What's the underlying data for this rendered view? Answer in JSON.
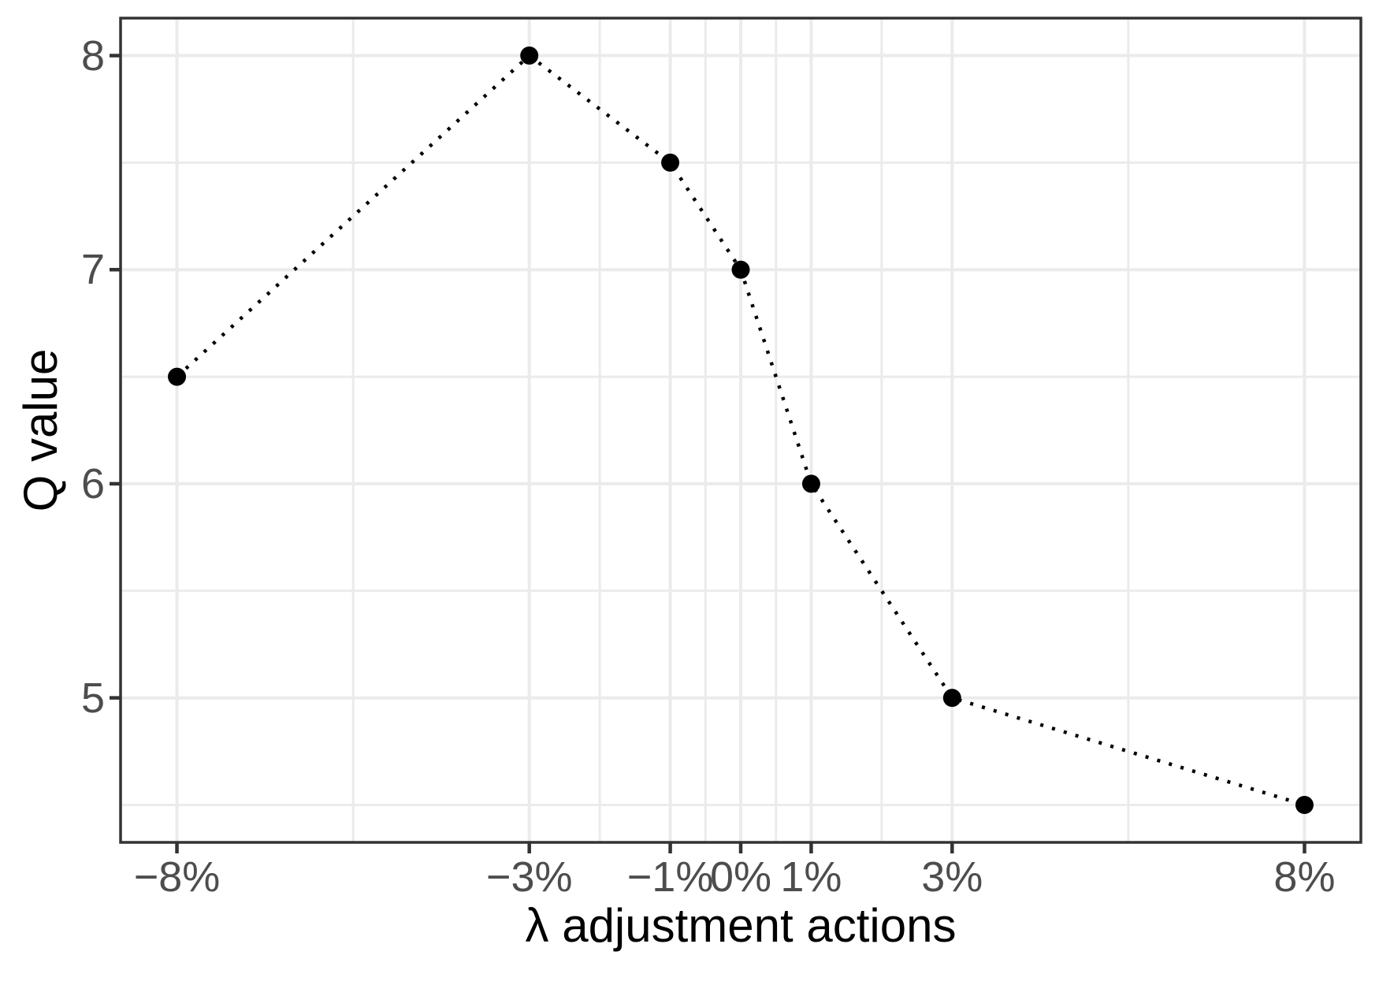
{
  "chart_data": {
    "type": "line",
    "subtype": "dotted-line-with-points",
    "title": "",
    "xlabel": "λ adjustment actions",
    "ylabel": "Q value",
    "x": [
      -8,
      -3,
      -1,
      0,
      1,
      3,
      8
    ],
    "x_tick_labels": [
      "−8%",
      "−3%",
      "−1%",
      "0%",
      "1%",
      "3%",
      "8%"
    ],
    "series": [
      {
        "name": "Q value",
        "x": [
          -8,
          -3,
          -1,
          0,
          1,
          3,
          8
        ],
        "values": [
          6.5,
          8.0,
          7.5,
          7.0,
          6.0,
          5.0,
          4.5
        ]
      }
    ],
    "y_ticks": [
      8,
      7,
      6,
      5
    ],
    "y_tick_labels": [
      "8",
      "7",
      "6",
      "5"
    ],
    "x_minor_gridlines": [
      -5.5,
      -2,
      -0.5,
      0.5,
      2,
      5.5
    ],
    "y_minor_gridlines": [
      7.5,
      6.5,
      5.5,
      4.5
    ],
    "xlim": [
      -8.8,
      8.8
    ],
    "ylim": [
      4.325,
      8.175
    ],
    "grid": "major-and-minor",
    "legend_position": "none",
    "colors": {
      "point": "#000000",
      "line": "#000000",
      "grid_major": "#ebebeb",
      "grid_minor": "#ebebeb",
      "panel_border": "#333333",
      "tick_mark": "#333333",
      "tick_label": "#4d4d4d",
      "axis_title": "#000000",
      "panel_background": "#ffffff"
    }
  }
}
